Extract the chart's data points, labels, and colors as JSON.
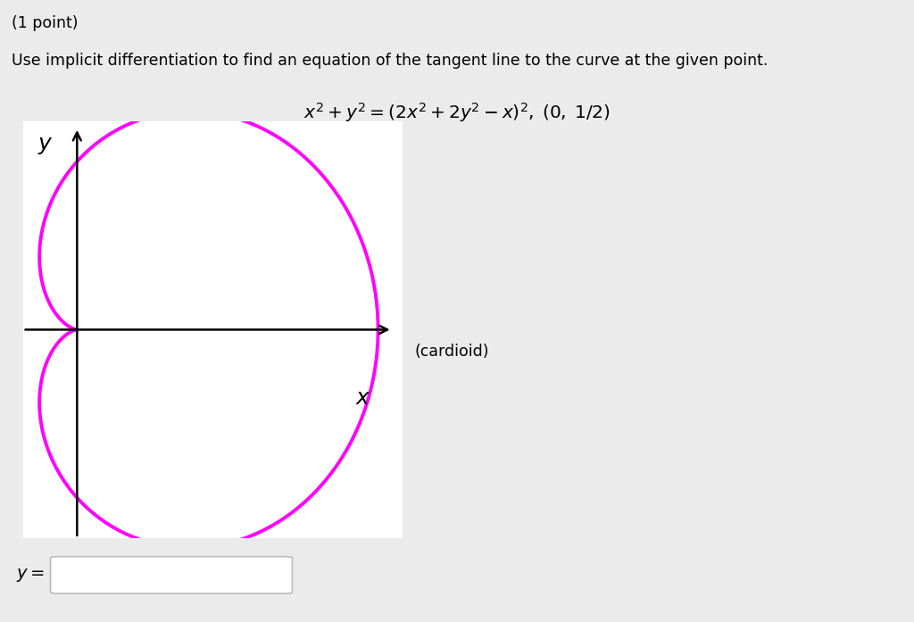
{
  "background_color": "#ebebeb",
  "plot_bg_color": "#ffffff",
  "title_point": "(1 point)",
  "instruction": "Use implicit differentiation to find an equation of the tangent line to the curve at the given point.",
  "equation_text": "x² + y² = (2x² + 2y² − x)²,  (0, 1/2)",
  "cardioid_label": "(cardioid)",
  "curve_color": "#ff00ff",
  "curve_linewidth": 2.8,
  "figure_size": [
    10.24,
    6.97
  ],
  "dpi": 100,
  "x_min": -0.18,
  "x_max": 1.08,
  "y_min": -0.62,
  "y_max": 0.62
}
